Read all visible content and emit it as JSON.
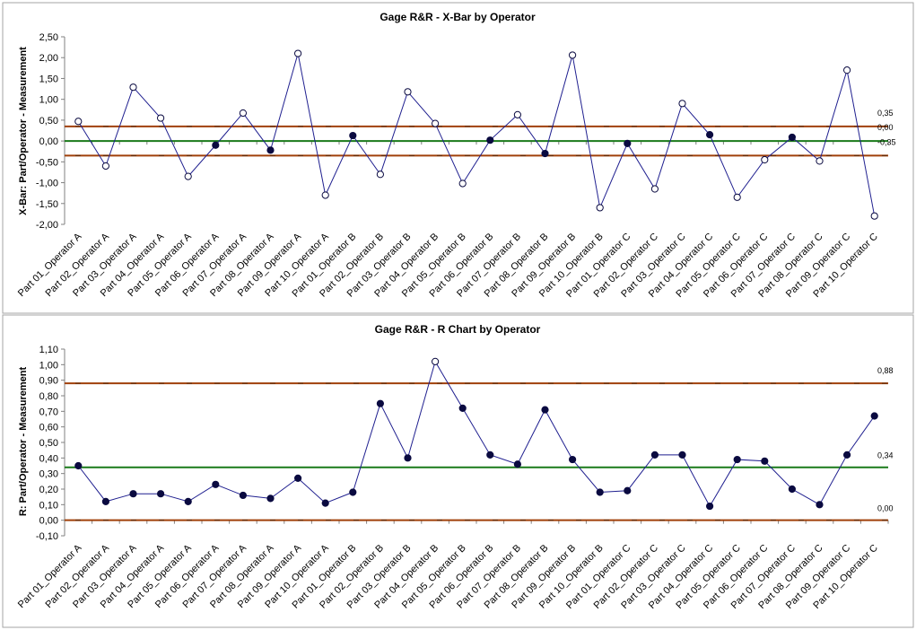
{
  "colors": {
    "series": "#1f1f8f",
    "center_line": "#1a7a1a",
    "control_limit": "#a0400a",
    "frame": "#a6a6a6",
    "axis": "#808080"
  },
  "chart_data": [
    {
      "type": "line",
      "title": "Gage R&R - X-Bar by Operator",
      "ylabel": "X-Bar: Part/Operator - Measurement",
      "xlabel": "",
      "ylim": [
        -2.0,
        2.5
      ],
      "yticks": [
        -2.0,
        -1.5,
        -1.0,
        -0.5,
        0.0,
        0.5,
        1.0,
        1.5,
        2.0,
        2.5
      ],
      "ytick_labels": [
        "-2,00",
        "-1,50",
        "-1,00",
        "-0,50",
        "0,00",
        "0,50",
        "1,00",
        "1,50",
        "2,00",
        "2,50"
      ],
      "grid": false,
      "categories": [
        "Part 01_Operator A",
        "Part 02_Operator A",
        "Part 03_Operator A",
        "Part 04_Operator A",
        "Part 05_Operator A",
        "Part 06_Operator A",
        "Part 07_Operator A",
        "Part 08_Operator A",
        "Part 09_Operator A",
        "Part 10_Operator A",
        "Part 01_Operator B",
        "Part 02_Operator B",
        "Part 03_Operator B",
        "Part 04_Operator B",
        "Part 05_Operator B",
        "Part 06_Operator B",
        "Part 07_Operator B",
        "Part 08_Operator B",
        "Part 09_Operator B",
        "Part 10_Operator B",
        "Part 01_Operator C",
        "Part 02_Operator C",
        "Part 03_Operator C",
        "Part 04_Operator C",
        "Part 05_Operator C",
        "Part 06_Operator C",
        "Part 07_Operator C",
        "Part 08_Operator C",
        "Part 09_Operator C",
        "Part 10_Operator C"
      ],
      "series": [
        {
          "values": [
            0.47,
            -0.6,
            1.29,
            0.55,
            -0.85,
            -0.1,
            0.67,
            -0.22,
            2.1,
            -1.3,
            0.13,
            -0.8,
            1.18,
            0.42,
            -1.02,
            0.02,
            0.63,
            -0.3,
            2.06,
            -1.6,
            -0.06,
            -1.15,
            0.9,
            0.15,
            -1.35,
            -0.45,
            0.09,
            -0.48,
            1.7,
            -1.8
          ],
          "within_limits": [
            false,
            false,
            false,
            false,
            false,
            true,
            false,
            true,
            false,
            false,
            true,
            false,
            false,
            false,
            false,
            true,
            false,
            true,
            false,
            false,
            true,
            false,
            false,
            true,
            false,
            false,
            true,
            false,
            false,
            false
          ]
        }
      ],
      "control_lines": {
        "ucl": 0.35,
        "center": 0.0,
        "lcl": -0.35,
        "labels": [
          "0,35",
          "0,00",
          "-0,35"
        ]
      }
    },
    {
      "type": "line",
      "title": "Gage R&R - R Chart by Operator",
      "ylabel": "R: Part/Operator - Measurement",
      "xlabel": "",
      "ylim": [
        -0.1,
        1.1
      ],
      "yticks": [
        -0.1,
        0.0,
        0.1,
        0.2,
        0.3,
        0.4,
        0.5,
        0.6,
        0.7,
        0.8,
        0.9,
        1.0,
        1.1
      ],
      "ytick_labels": [
        "-0,10",
        "0,00",
        "0,10",
        "0,20",
        "0,30",
        "0,40",
        "0,50",
        "0,60",
        "0,70",
        "0,80",
        "0,90",
        "1,00",
        "1,10"
      ],
      "grid": false,
      "categories": [
        "Part 01_Operator A",
        "Part 02_Operator A",
        "Part 03_Operator A",
        "Part 04_Operator A",
        "Part 05_Operator A",
        "Part 06_Operator A",
        "Part 07_Operator A",
        "Part 08_Operator A",
        "Part 09_Operator A",
        "Part 10_Operator A",
        "Part 01_Operator B",
        "Part 02_Operator B",
        "Part 03_Operator B",
        "Part 04_Operator B",
        "Part 05_Operator B",
        "Part 06_Operator B",
        "Part 07_Operator B",
        "Part 08_Operator B",
        "Part 09_Operator B",
        "Part 10_Operator B",
        "Part 01_Operator C",
        "Part 02_Operator C",
        "Part 03_Operator C",
        "Part 04_Operator C",
        "Part 05_Operator C",
        "Part 06_Operator C",
        "Part 07_Operator C",
        "Part 08_Operator C",
        "Part 09_Operator C",
        "Part 10_Operator C"
      ],
      "series": [
        {
          "values": [
            0.35,
            0.12,
            0.17,
            0.17,
            0.12,
            0.23,
            0.16,
            0.14,
            0.27,
            0.11,
            0.18,
            0.75,
            0.4,
            1.02,
            0.72,
            0.42,
            0.36,
            0.71,
            0.39,
            0.18,
            0.19,
            0.42,
            0.42,
            0.09,
            0.39,
            0.38,
            0.2,
            0.1,
            0.42,
            0.67
          ],
          "within_limits": [
            true,
            true,
            true,
            true,
            true,
            true,
            true,
            true,
            true,
            true,
            true,
            true,
            true,
            false,
            true,
            true,
            true,
            true,
            true,
            true,
            true,
            true,
            true,
            true,
            true,
            true,
            true,
            true,
            true,
            true
          ]
        }
      ],
      "control_lines": {
        "ucl": 0.88,
        "center": 0.34,
        "lcl": 0.0,
        "labels": [
          "0,88",
          "0,34",
          "0,00"
        ]
      }
    }
  ]
}
